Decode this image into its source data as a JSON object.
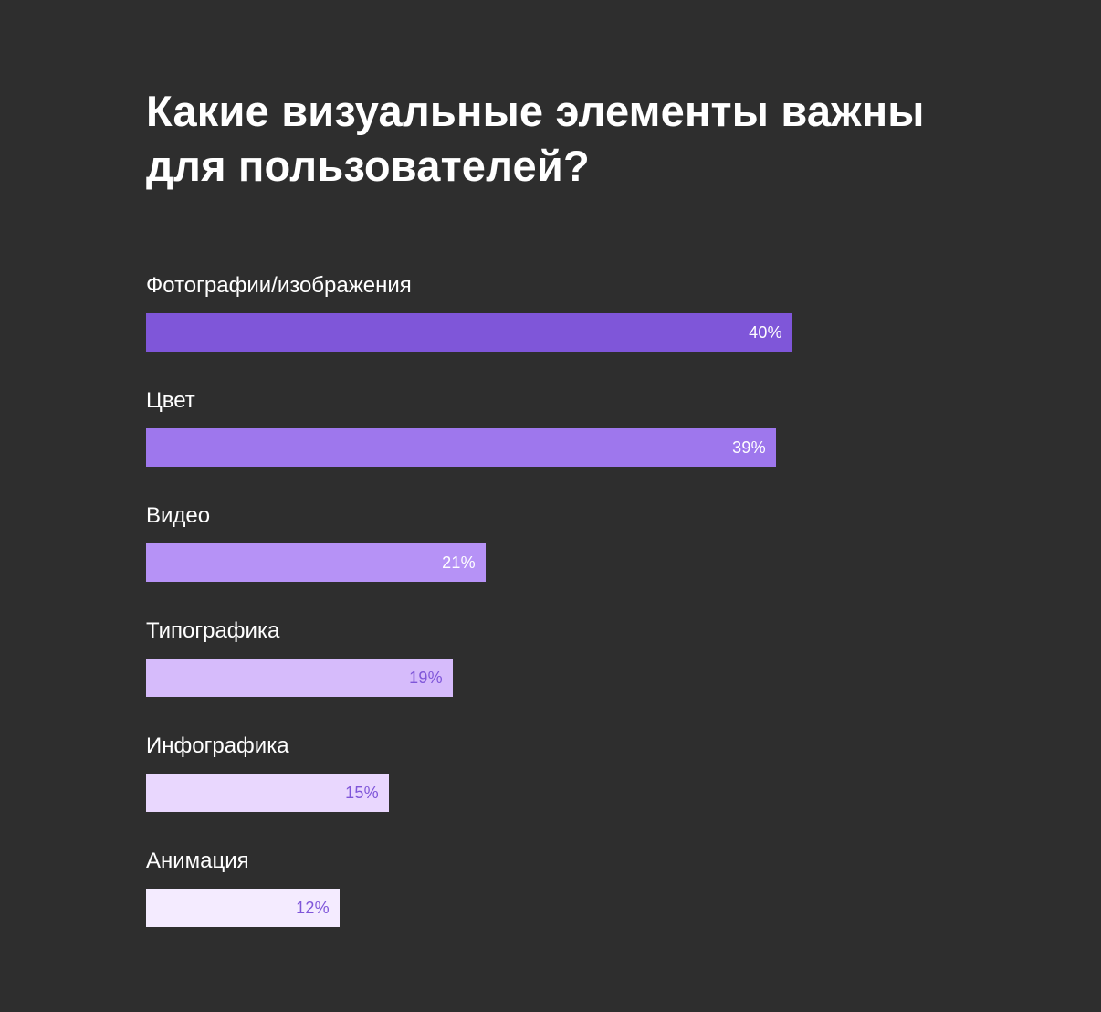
{
  "chart_data": {
    "type": "bar",
    "orientation": "horizontal",
    "title": "Какие визуальные элементы важны для пользователей?",
    "categories": [
      "Фотографии/изображения",
      "Цвет",
      "Видео",
      "Типографика",
      "Инфографика",
      "Анимация"
    ],
    "values": [
      40,
      39,
      21,
      19,
      15,
      12
    ],
    "value_labels": [
      "40%",
      "39%",
      "21%",
      "19%",
      "15%",
      "12%"
    ],
    "unit": "%",
    "grid": false,
    "legend": "none",
    "bar_colors": [
      "#7f56d9",
      "#9e77ed",
      "#b692f6",
      "#d6bbfb",
      "#e9d7fe",
      "#f4ebff"
    ],
    "value_label_colors": [
      "#ffffff",
      "#ffffff",
      "#ffffff",
      "#7f56d9",
      "#7f56d9",
      "#7f56d9"
    ]
  },
  "colors": {
    "background": "#2e2e2e",
    "text": "#ffffff"
  }
}
